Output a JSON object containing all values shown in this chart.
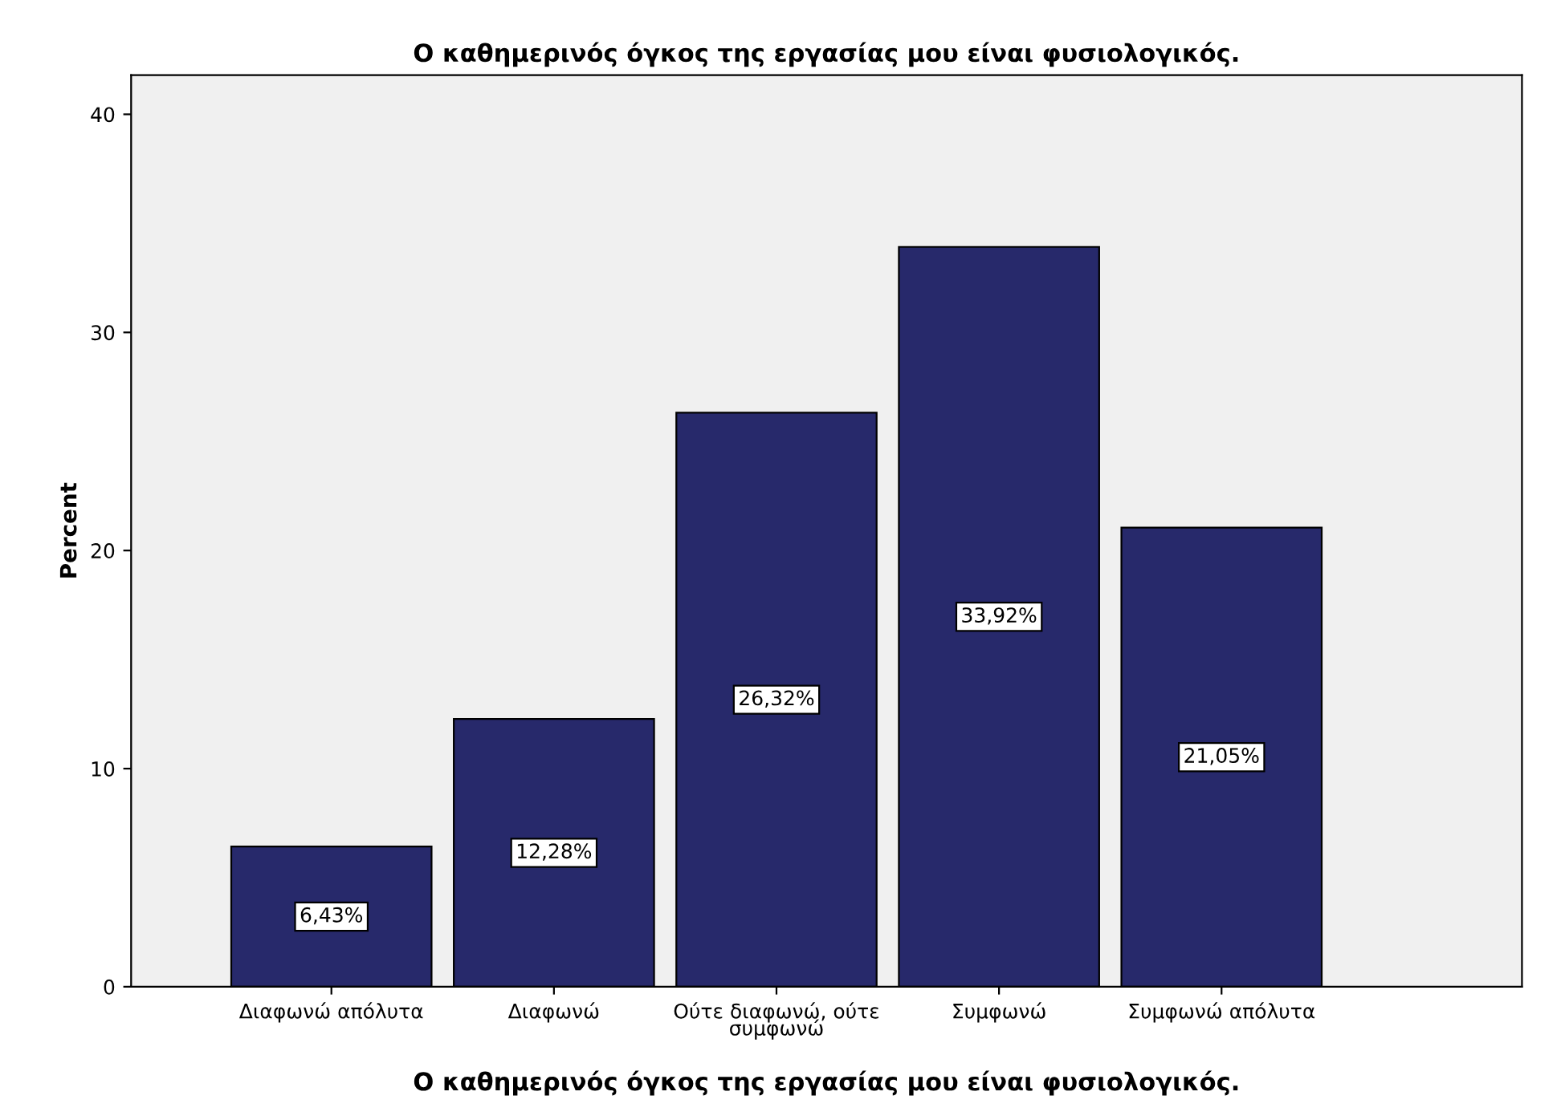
{
  "chart_data": {
    "type": "bar",
    "title": "Ο καθημερινός όγκος της εργασίας μου είναι φυσιολογικός.",
    "xlabel": "Ο καθημερινός όγκος της εργασίας μου είναι φυσιολογικός.",
    "ylabel": "Percent",
    "categories": [
      "Διαφωνώ απόλυτα",
      "Διαφωνώ",
      "Ούτε διαφωνώ, ούτε συμφωνώ",
      "Συμφωνώ",
      "Συμφωνώ απόλυτα"
    ],
    "values": [
      6.43,
      12.28,
      26.32,
      33.92,
      21.05
    ],
    "value_labels": [
      "6,43%",
      "12,28%",
      "26,32%",
      "33,92%",
      "21,05%"
    ],
    "color": "#27296b",
    "ylim": [
      0,
      41.8
    ],
    "yticks": [
      0,
      10,
      20,
      30,
      40
    ],
    "grid": false,
    "legend": false
  }
}
